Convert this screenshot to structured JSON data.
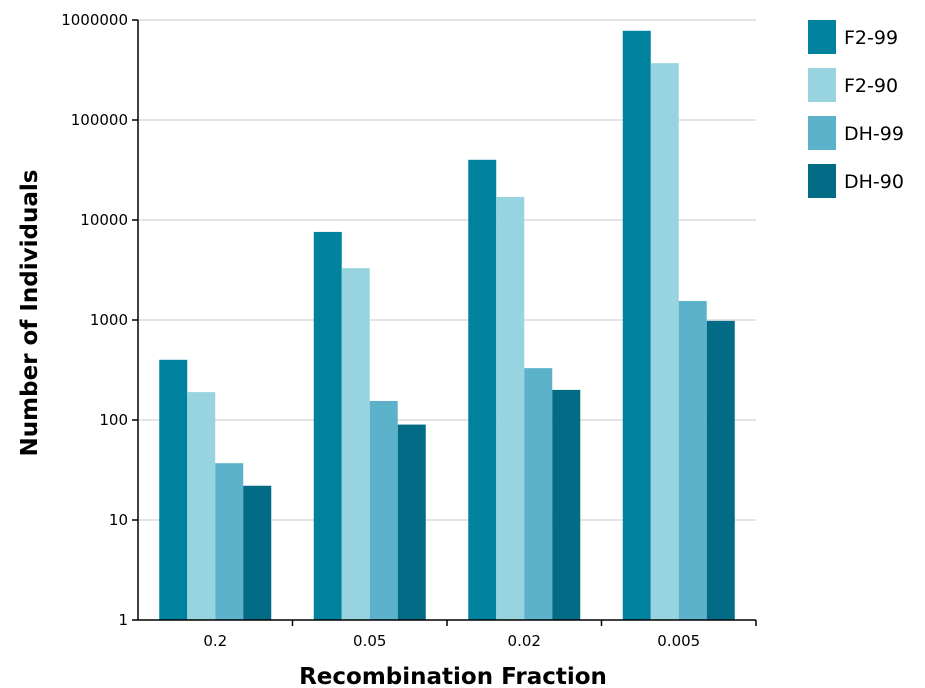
{
  "chart_data": {
    "type": "bar",
    "title": "",
    "xlabel": "Recombination Fraction",
    "ylabel": "Number of Individuals",
    "y_scale": "log",
    "ylim": [
      1,
      1000000
    ],
    "y_ticks": [
      "1",
      "10",
      "100",
      "1000",
      "10000",
      "100000",
      "1000000"
    ],
    "grid": "horizontal",
    "legend_position": "top-right",
    "categories": [
      "0.2",
      "0.05",
      "0.02",
      "0.005"
    ],
    "series": [
      {
        "name": "F2-99",
        "color": "#00829F",
        "values": [
          400,
          7600,
          40000,
          780000
        ]
      },
      {
        "name": "F2-90",
        "color": "#98D3E0",
        "values": [
          190,
          3300,
          17000,
          370000
        ]
      },
      {
        "name": "DH-99",
        "color": "#5BB2CA",
        "values": [
          37,
          155,
          330,
          1550
        ]
      },
      {
        "name": "DH-90",
        "color": "#026C86",
        "values": [
          22,
          90,
          200,
          980
        ]
      }
    ]
  }
}
